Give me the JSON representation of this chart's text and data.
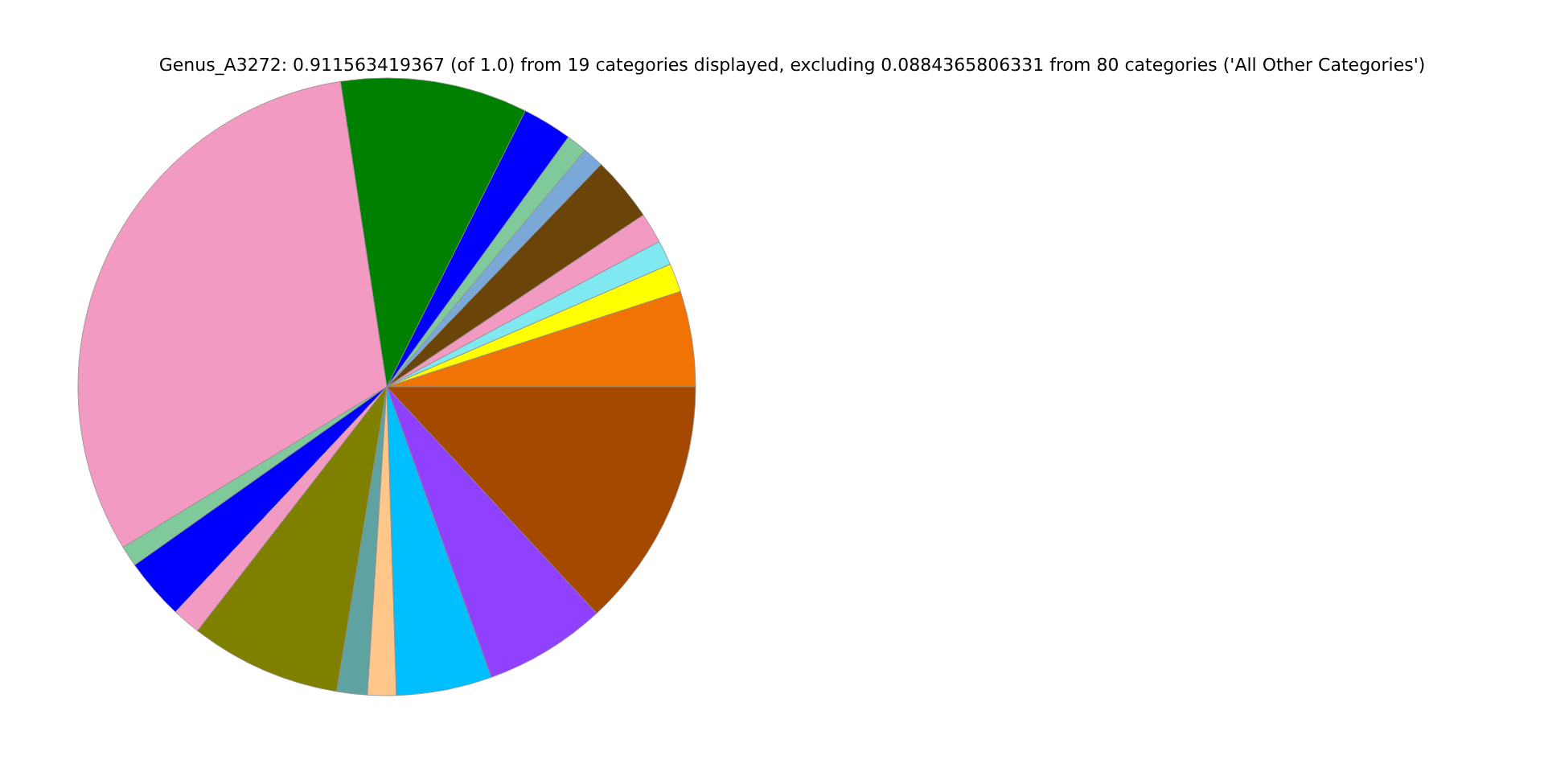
{
  "chart_data": {
    "type": "pie",
    "title": "Genus_A3272: 0.911563419367 (of 1.0) from 19 categories displayed, excluding 0.0884365806331 from 80 categories ('All Other Categories')",
    "categories": [
      null,
      null,
      null,
      null,
      null,
      null,
      null,
      null,
      null,
      null,
      null,
      null,
      null,
      null,
      null,
      null,
      null,
      null,
      null
    ],
    "values": [
      5.0,
      1.5,
      1.3,
      1.6,
      3.4,
      1.1,
      1.1,
      2.6,
      9.8,
      31.3,
      1.1,
      3.2,
      1.5,
      7.9,
      1.6,
      1.5,
      5.0,
      6.4,
      13.1
    ],
    "colors": [
      "#f07304",
      "#ffff00",
      "#80e8f0",
      "#f39ac3",
      "#6b4409",
      "#7aa9d8",
      "#80c99a",
      "#0000ff",
      "#008000",
      "#f39ac3",
      "#80c99a",
      "#0000ff",
      "#f39ac3",
      "#808000",
      "#5fa2a2",
      "#ffc68a",
      "#00bfff",
      "#9040ff",
      "#a54800"
    ]
  }
}
